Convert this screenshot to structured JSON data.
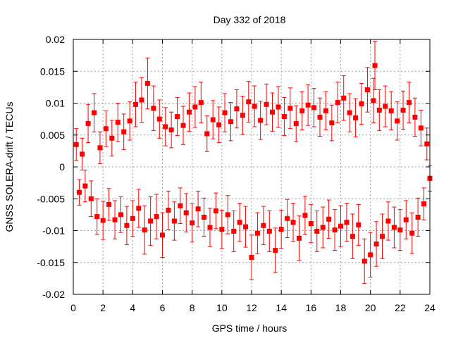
{
  "chart_data": {
    "type": "scatter",
    "title": "Day 332 of 2018",
    "xlabel": "GPS time / hours",
    "ylabel": "GNSS SOLERA-drift / TECUs",
    "xlim": [
      0,
      24
    ],
    "ylim": [
      -0.02,
      0.02
    ],
    "xticks": [
      0,
      2,
      4,
      6,
      8,
      10,
      12,
      14,
      16,
      18,
      20,
      22,
      24
    ],
    "yticks": [
      -0.02,
      -0.015,
      -0.01,
      -0.005,
      0,
      0.005,
      0.01,
      0.015,
      0.02
    ],
    "ytick_labels": [
      "-0.02",
      "-0.015",
      "-0.01",
      "-0.005",
      "0",
      "0.005",
      "0.01",
      "0.015",
      "0.02"
    ],
    "grid": true,
    "error_bars": true,
    "marker": "square",
    "color": "#ff0000",
    "series": [
      {
        "points": [
          [
            0.2,
            0.0035,
            0.0025
          ],
          [
            0.4,
            -0.004,
            0.002
          ],
          [
            0.6,
            0.002,
            0.0025
          ],
          [
            0.8,
            -0.003,
            0.0025
          ],
          [
            1.0,
            0.0068,
            0.003
          ],
          [
            1.2,
            -0.005,
            0.0028
          ],
          [
            1.4,
            0.0085,
            0.003
          ],
          [
            1.6,
            -0.0078,
            0.0028
          ],
          [
            1.8,
            0.003,
            0.0025
          ],
          [
            2.0,
            -0.0084,
            0.003
          ],
          [
            2.2,
            0.006,
            0.0028
          ],
          [
            2.4,
            -0.0059,
            0.0025
          ],
          [
            2.6,
            0.0045,
            0.0028
          ],
          [
            2.8,
            -0.0083,
            0.003
          ],
          [
            3.0,
            0.007,
            0.003
          ],
          [
            3.2,
            -0.0075,
            0.0028
          ],
          [
            3.4,
            0.0055,
            0.0028
          ],
          [
            3.6,
            -0.0092,
            0.003
          ],
          [
            3.8,
            0.0072,
            0.003
          ],
          [
            4.0,
            -0.0081,
            0.0028
          ],
          [
            4.2,
            0.0098,
            0.0035
          ],
          [
            4.4,
            -0.0065,
            0.003
          ],
          [
            4.6,
            0.0105,
            0.0035
          ],
          [
            4.8,
            -0.0099,
            0.0038
          ],
          [
            5.0,
            0.0131,
            0.004
          ],
          [
            5.2,
            -0.0085,
            0.0038
          ],
          [
            5.4,
            0.0092,
            0.0035
          ],
          [
            5.6,
            -0.0078,
            0.0035
          ],
          [
            5.8,
            0.0075,
            0.003
          ],
          [
            6.0,
            -0.0107,
            0.0035
          ],
          [
            6.2,
            0.0063,
            0.003
          ],
          [
            6.4,
            -0.0068,
            0.003
          ],
          [
            6.6,
            0.0058,
            0.0028
          ],
          [
            6.8,
            -0.0085,
            0.003
          ],
          [
            7.0,
            0.0079,
            0.003
          ],
          [
            7.2,
            -0.0061,
            0.0028
          ],
          [
            7.4,
            0.0065,
            0.003
          ],
          [
            7.6,
            -0.0072,
            0.003
          ],
          [
            7.8,
            0.0086,
            0.003
          ],
          [
            8.0,
            -0.0088,
            0.003
          ],
          [
            8.2,
            0.0094,
            0.0032
          ],
          [
            8.4,
            -0.0066,
            0.0028
          ],
          [
            8.6,
            0.0101,
            0.0032
          ],
          [
            8.8,
            -0.0079,
            0.003
          ],
          [
            9.0,
            0.0052,
            0.0028
          ],
          [
            9.2,
            -0.0095,
            0.003
          ],
          [
            9.4,
            0.0074,
            0.003
          ],
          [
            9.6,
            -0.0069,
            0.0028
          ],
          [
            9.8,
            0.0066,
            0.0028
          ],
          [
            10.0,
            -0.0098,
            0.003
          ],
          [
            10.2,
            0.0085,
            0.003
          ],
          [
            10.4,
            -0.0075,
            0.003
          ],
          [
            10.6,
            0.0071,
            0.003
          ],
          [
            10.8,
            -0.0101,
            0.0032
          ],
          [
            11.0,
            0.0091,
            0.003
          ],
          [
            11.2,
            -0.0087,
            0.003
          ],
          [
            11.4,
            0.0081,
            0.003
          ],
          [
            11.6,
            -0.0094,
            0.0032
          ],
          [
            11.8,
            0.0102,
            0.0032
          ],
          [
            12.0,
            -0.0142,
            0.0035
          ],
          [
            12.2,
            0.0095,
            0.0032
          ],
          [
            12.4,
            -0.0104,
            0.0032
          ],
          [
            12.6,
            0.0073,
            0.003
          ],
          [
            12.8,
            -0.0092,
            0.003
          ],
          [
            13.0,
            0.0098,
            0.0032
          ],
          [
            13.2,
            -0.0101,
            0.0032
          ],
          [
            13.4,
            0.0086,
            0.003
          ],
          [
            13.6,
            -0.0131,
            0.0035
          ],
          [
            13.8,
            0.0094,
            0.0032
          ],
          [
            14.0,
            -0.0098,
            0.003
          ],
          [
            14.2,
            0.0079,
            0.003
          ],
          [
            14.4,
            -0.0081,
            0.003
          ],
          [
            14.6,
            0.0092,
            0.0032
          ],
          [
            14.8,
            -0.0087,
            0.003
          ],
          [
            15.0,
            0.0068,
            0.0028
          ],
          [
            15.2,
            -0.0112,
            0.0035
          ],
          [
            15.4,
            0.0088,
            0.003
          ],
          [
            15.6,
            -0.0076,
            0.003
          ],
          [
            15.8,
            0.0097,
            0.0032
          ],
          [
            16.0,
            -0.0089,
            0.003
          ],
          [
            16.2,
            0.0093,
            0.003
          ],
          [
            16.4,
            -0.0101,
            0.0032
          ],
          [
            16.6,
            0.0078,
            0.003
          ],
          [
            16.8,
            -0.0095,
            0.0032
          ],
          [
            17.0,
            0.0088,
            0.003
          ],
          [
            17.2,
            -0.0082,
            0.003
          ],
          [
            17.4,
            0.0069,
            0.0028
          ],
          [
            17.6,
            -0.0099,
            0.0032
          ],
          [
            17.8,
            0.0101,
            0.0032
          ],
          [
            18.0,
            -0.0093,
            0.0032
          ],
          [
            18.2,
            0.0108,
            0.0035
          ],
          [
            18.4,
            -0.0087,
            0.003
          ],
          [
            18.6,
            0.0085,
            0.003
          ],
          [
            18.8,
            -0.0109,
            0.0035
          ],
          [
            19.0,
            0.0077,
            0.003
          ],
          [
            19.2,
            -0.0091,
            0.0032
          ],
          [
            19.4,
            0.0099,
            0.0032
          ],
          [
            19.6,
            -0.0148,
            0.0035
          ],
          [
            19.8,
            0.0121,
            0.0035
          ],
          [
            20.0,
            -0.0138,
            0.0035
          ],
          [
            20.2,
            0.0104,
            0.0035
          ],
          [
            20.3,
            0.0159,
            0.0038
          ],
          [
            20.4,
            -0.0121,
            0.0035
          ],
          [
            20.6,
            0.0089,
            0.0032
          ],
          [
            20.8,
            -0.0109,
            0.0035
          ],
          [
            21.0,
            0.0095,
            0.0032
          ],
          [
            21.2,
            -0.0085,
            0.003
          ],
          [
            21.4,
            0.0088,
            0.003
          ],
          [
            21.6,
            -0.0095,
            0.0032
          ],
          [
            21.8,
            0.0072,
            0.003
          ],
          [
            22.0,
            -0.0099,
            0.0032
          ],
          [
            22.2,
            0.0089,
            0.003
          ],
          [
            22.4,
            -0.0083,
            0.003
          ],
          [
            22.6,
            0.0101,
            0.0032
          ],
          [
            22.8,
            -0.0104,
            0.0032
          ],
          [
            23.0,
            0.0078,
            0.003
          ],
          [
            23.2,
            -0.0079,
            0.003
          ],
          [
            23.4,
            0.0061,
            0.0028
          ],
          [
            23.6,
            -0.0058,
            0.0025
          ],
          [
            23.8,
            0.0036,
            0.0025
          ],
          [
            24.0,
            -0.0018,
            0.002
          ]
        ]
      }
    ]
  }
}
